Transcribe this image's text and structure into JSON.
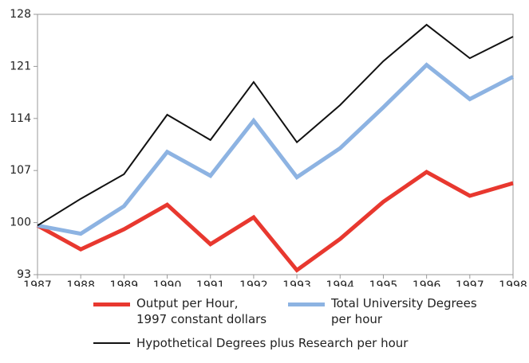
{
  "chart_data": {
    "type": "line",
    "x": [
      1987,
      1988,
      1989,
      1990,
      1991,
      1992,
      1993,
      1994,
      1995,
      1996,
      1997,
      1998
    ],
    "xlim": [
      1987,
      1998
    ],
    "xticks": [
      1987,
      1988,
      1989,
      1990,
      1991,
      1992,
      1993,
      1994,
      1995,
      1996,
      1997,
      1998
    ],
    "ylim": [
      93,
      128
    ],
    "yticks": [
      93,
      100,
      107,
      114,
      121,
      128
    ],
    "series": [
      {
        "name": "Output per Hour,\n1997 constant dollars",
        "color": "#e8382f",
        "width": 5,
        "values": [
          99.6,
          96.4,
          99.1,
          102.4,
          97.1,
          100.7,
          93.6,
          97.8,
          102.8,
          106.8,
          103.6,
          105.3
        ]
      },
      {
        "name": "Total University Degrees\nper hour",
        "color": "#8db3e2",
        "width": 5,
        "values": [
          99.6,
          98.5,
          102.2,
          109.5,
          106.3,
          113.7,
          106.1,
          110.0,
          115.5,
          121.2,
          116.6,
          119.6
        ]
      },
      {
        "name": "Hypothetical Degrees plus Research per hour",
        "color": "#111111",
        "width": 2,
        "values": [
          99.6,
          103.2,
          106.5,
          114.5,
          111.1,
          118.9,
          110.8,
          115.8,
          121.7,
          126.6,
          122.1,
          125.0
        ]
      }
    ]
  }
}
